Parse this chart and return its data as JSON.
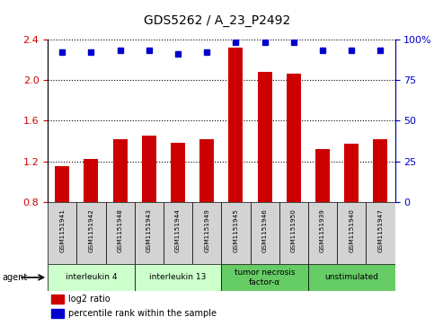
{
  "title": "GDS5262 / A_23_P2492",
  "samples": [
    "GSM1151941",
    "GSM1151942",
    "GSM1151948",
    "GSM1151943",
    "GSM1151944",
    "GSM1151949",
    "GSM1151945",
    "GSM1151946",
    "GSM1151950",
    "GSM1151939",
    "GSM1151940",
    "GSM1151947"
  ],
  "log2_ratio": [
    1.15,
    1.22,
    1.42,
    1.45,
    1.38,
    1.42,
    2.32,
    2.08,
    2.06,
    1.32,
    1.37,
    1.42
  ],
  "percentile": [
    92,
    92,
    93,
    93,
    91,
    92,
    98,
    98,
    98,
    93,
    93,
    93
  ],
  "groups": [
    {
      "label": "interleukin 4",
      "start": 0,
      "end": 3,
      "color": "#ccffcc"
    },
    {
      "label": "interleukin 13",
      "start": 3,
      "end": 6,
      "color": "#ccffcc"
    },
    {
      "label": "tumor necrosis\nfactor-α",
      "start": 6,
      "end": 9,
      "color": "#66cc66"
    },
    {
      "label": "unstimulated",
      "start": 9,
      "end": 12,
      "color": "#66cc66"
    }
  ],
  "bar_color": "#cc0000",
  "dot_color": "#0000cc",
  "ylim_left": [
    0.8,
    2.4
  ],
  "yticks_left": [
    0.8,
    1.2,
    1.6,
    2.0,
    2.4
  ],
  "ylim_right": [
    0,
    100
  ],
  "yticks_right": [
    0,
    25,
    50,
    75,
    100
  ],
  "background_color": "#ffffff"
}
